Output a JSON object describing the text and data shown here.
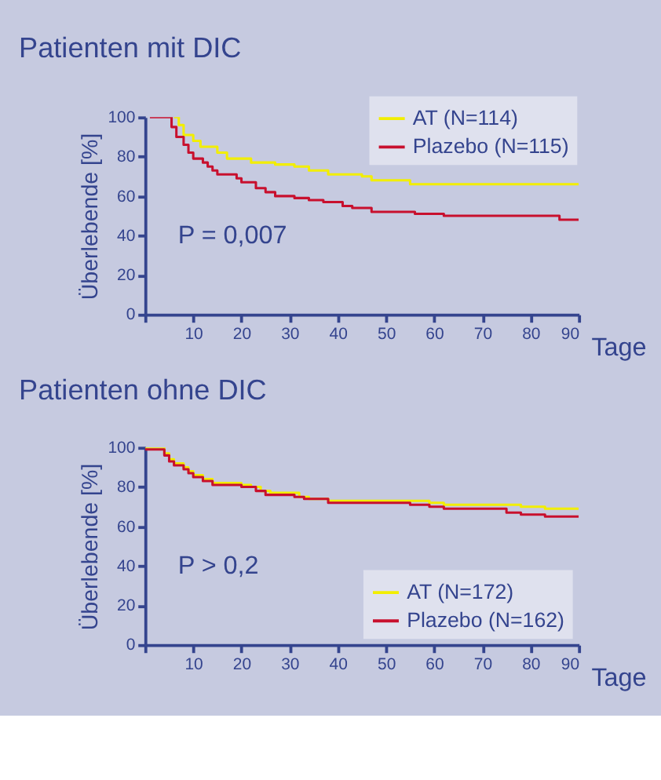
{
  "chart_data": [
    {
      "type": "step",
      "title": "Patienten mit DIC",
      "xlabel": "Tage",
      "ylabel": "Überlebende [%]",
      "xlim": [
        0,
        90
      ],
      "ylim": [
        0,
        100
      ],
      "xticks": [
        {
          "value": 0,
          "label": null
        },
        10,
        20,
        30,
        40,
        50,
        60,
        70,
        80,
        90
      ],
      "yticks": [
        0,
        20,
        40,
        60,
        80,
        100
      ],
      "grid": false,
      "legend": "top right",
      "annotations": [
        "P = 0,007"
      ],
      "series": [
        {
          "name": "AT (N=114)",
          "color": "#f2ee00",
          "x": [
            6,
            7,
            8,
            10,
            11.5,
            15,
            17,
            22,
            27,
            31,
            34,
            38,
            45,
            47,
            55,
            90
          ],
          "values": [
            100,
            96,
            91,
            88,
            85,
            82,
            79,
            77,
            76,
            75,
            73,
            71,
            70,
            68,
            66,
            66
          ]
        },
        {
          "name": "Plazebo (N=115)",
          "color": "#c8102e",
          "x": [
            1,
            5,
            5.5,
            6.5,
            8,
            9,
            10,
            12,
            13,
            14,
            15,
            19,
            20,
            23,
            25,
            27,
            31,
            34,
            37,
            41,
            43,
            47,
            56,
            62,
            86,
            90
          ],
          "values": [
            100,
            100,
            95,
            90,
            86,
            82,
            79,
            77,
            75,
            73,
            71,
            69,
            67,
            64,
            62,
            60,
            59,
            58,
            57,
            55,
            54,
            52,
            51,
            50,
            48,
            48
          ]
        }
      ]
    },
    {
      "type": "step",
      "title": "Patienten ohne DIC",
      "xlabel": "Tage",
      "ylabel": "Überlebende [%]",
      "xlim": [
        0,
        90
      ],
      "ylim": [
        0,
        100
      ],
      "xticks": [
        {
          "value": 0,
          "label": null
        },
        10,
        20,
        30,
        40,
        50,
        60,
        70,
        80,
        90
      ],
      "yticks": [
        0,
        20,
        40,
        60,
        80,
        100
      ],
      "grid": false,
      "legend": "bottom right",
      "annotations": [
        "P > 0,2"
      ],
      "series": [
        {
          "name": "AT (N=172)",
          "color": "#f2ee00",
          "x": [
            0,
            4,
            5,
            6,
            8,
            9,
            10,
            12,
            14,
            20,
            22,
            24,
            26,
            32,
            34,
            38,
            59,
            62,
            78,
            83,
            90
          ],
          "values": [
            100,
            97,
            94,
            92,
            90,
            88,
            86,
            84,
            82,
            81,
            80,
            78,
            77,
            75,
            74,
            73,
            72,
            71,
            70,
            69,
            69
          ]
        },
        {
          "name": "Plazebo (N=162)",
          "color": "#c8102e",
          "x": [
            0,
            4,
            5,
            6,
            8,
            9,
            10,
            12,
            14,
            20,
            23,
            25,
            31,
            33,
            38,
            55,
            59,
            62,
            75,
            78,
            83,
            90
          ],
          "values": [
            99,
            96,
            93,
            91,
            89,
            87,
            85,
            83,
            81,
            80,
            78,
            76,
            75,
            74,
            72,
            71,
            70,
            69,
            67,
            66,
            65,
            65
          ]
        }
      ]
    }
  ]
}
